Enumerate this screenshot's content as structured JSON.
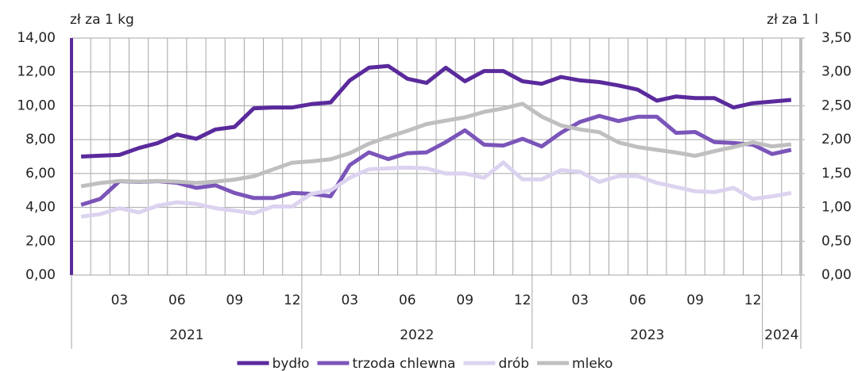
{
  "chart_data": {
    "type": "line",
    "y_label": "zł za 1 kg",
    "y2_label": "zł za 1 l",
    "categories": [
      null,
      null,
      "03",
      null,
      null,
      "06",
      null,
      null,
      "09",
      null,
      null,
      "12",
      null,
      null,
      "03",
      null,
      null,
      "06",
      null,
      null,
      "09",
      null,
      null,
      "12",
      null,
      null,
      "03",
      null,
      null,
      "06",
      null,
      null,
      "09",
      null,
      null,
      "12",
      null,
      null
    ],
    "x_groups": [
      "2021",
      "2022",
      "2023",
      "2024"
    ],
    "ylim": [
      0,
      14
    ],
    "yticks": [
      {
        "value": 0,
        "label": "0,00"
      },
      {
        "value": 2,
        "label": "2,00"
      },
      {
        "value": 4,
        "label": "4,00"
      },
      {
        "value": 6,
        "label": "6,00"
      },
      {
        "value": 8,
        "label": "8,00"
      },
      {
        "value": 10,
        "label": "10,00"
      },
      {
        "value": 12,
        "label": "12,00"
      },
      {
        "value": 14,
        "label": "14,00"
      }
    ],
    "y2lim": [
      0,
      3.5
    ],
    "y2ticks": [
      {
        "value": 0,
        "label": "0,00"
      },
      {
        "value": 0.5,
        "label": "0,50"
      },
      {
        "value": 1,
        "label": "1,00"
      },
      {
        "value": 1.5,
        "label": "1,50"
      },
      {
        "value": 2,
        "label": "2,00"
      },
      {
        "value": 2.5,
        "label": "2,50"
      },
      {
        "value": 3,
        "label": "3,00"
      },
      {
        "value": 3.5,
        "label": "3,50"
      }
    ],
    "grid": true,
    "legend": "bottom",
    "series": [
      {
        "name": "bydło",
        "color": "#5a2a9c",
        "values": [
          7.0,
          7.05,
          7.1,
          7.5,
          7.8,
          8.3,
          8.05,
          8.6,
          8.75,
          9.85,
          9.9,
          9.9,
          10.1,
          10.2,
          11.5,
          12.25,
          12.35,
          11.6,
          11.35,
          12.25,
          11.45,
          12.05,
          12.05,
          11.45,
          11.3,
          11.7,
          11.5,
          11.4,
          11.2,
          10.95,
          10.3,
          10.55,
          10.45,
          10.45,
          9.9,
          10.15,
          10.25,
          10.35
        ]
      },
      {
        "name": "trzoda chlewna",
        "color": "#7b55b9",
        "values": [
          4.15,
          4.5,
          5.55,
          5.5,
          5.55,
          5.45,
          5.15,
          5.3,
          4.85,
          4.55,
          4.55,
          4.85,
          4.8,
          4.65,
          6.5,
          7.25,
          6.85,
          7.2,
          7.25,
          7.85,
          8.55,
          7.7,
          7.65,
          8.05,
          7.6,
          8.4,
          9.05,
          9.4,
          9.1,
          9.35,
          9.35,
          8.4,
          8.45,
          7.85,
          7.8,
          7.7,
          7.15,
          7.4
        ]
      },
      {
        "name": "drób",
        "color": "#dcd3f0",
        "values": [
          3.45,
          3.6,
          3.95,
          3.7,
          4.1,
          4.3,
          4.2,
          3.95,
          3.8,
          3.65,
          4.05,
          4.05,
          4.8,
          5.0,
          5.75,
          6.25,
          6.3,
          6.35,
          6.3,
          6.0,
          6.0,
          5.75,
          6.65,
          5.65,
          5.65,
          6.2,
          6.1,
          5.5,
          5.85,
          5.85,
          5.45,
          5.2,
          4.95,
          4.9,
          5.15,
          4.5,
          4.65,
          4.85
        ]
      },
      {
        "name": "mleko",
        "color": "#bfbfbf",
        "axis": "y2",
        "values": [
          1.31,
          1.36,
          1.39,
          1.38,
          1.39,
          1.38,
          1.36,
          1.38,
          1.41,
          1.46,
          1.56,
          1.66,
          1.68,
          1.71,
          1.8,
          1.94,
          2.04,
          2.13,
          2.23,
          2.28,
          2.33,
          2.41,
          2.46,
          2.53,
          2.34,
          2.21,
          2.15,
          2.11,
          1.96,
          1.89,
          1.85,
          1.81,
          1.76,
          1.83,
          1.89,
          1.96,
          1.9,
          1.93
        ]
      }
    ]
  }
}
